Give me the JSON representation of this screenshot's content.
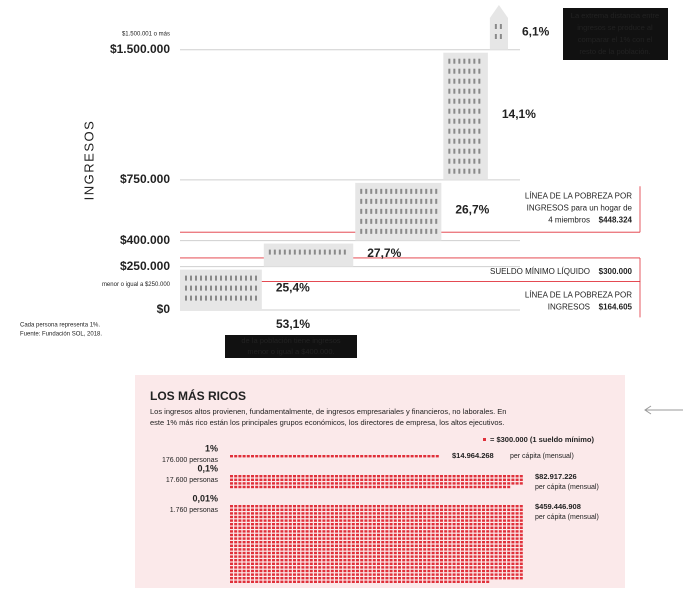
{
  "chart_data": {
    "type": "step",
    "y_label": "INGRESOS",
    "ylim": [
      0,
      1700000
    ],
    "xlim": [
      0,
      100
    ],
    "yticks": [
      {
        "value": 0,
        "label": "$0"
      },
      {
        "value": 250000,
        "label": "$250.000"
      },
      {
        "value": 400000,
        "label": "$400.000"
      },
      {
        "value": 750000,
        "label": "$750.000"
      },
      {
        "value": 1500000,
        "label": "$1.500.000"
      }
    ],
    "tick_notes": [
      "menor o igual a $250.000",
      "$1.500.001 o más"
    ],
    "values": [
      25.4,
      27.7,
      26.7,
      14.1,
      6.1
    ],
    "value_labels": [
      "25,4%",
      "27,7%",
      "26,7%",
      "14,1%",
      "6,1%"
    ],
    "color": "#e6e6e6",
    "reference_lines": [
      {
        "lines": [
          "LÍNEA DE LA POBREZA POR",
          "INGRESOS para un hogar de",
          "4 miembros"
        ],
        "value": 448324,
        "value_label": "$448.324"
      },
      {
        "lines": [
          "SUELDO MÍNIMO LÍQUIDO"
        ],
        "value": 300000,
        "value_label": "$300.000"
      },
      {
        "lines": [
          "LÍNEA DE LA POBREZA POR",
          "INGRESOS"
        ],
        "value": 164605,
        "value_label": "$164.605"
      }
    ],
    "reference_color": "#e0303a",
    "note_lines": [
      "La extrema distancia entre",
      "ingresos se produce al",
      "comparar el 1% con el",
      "resto de la población."
    ],
    "highlight": {
      "text": "53,1%",
      "lines": [
        "de la población tiene ingresos",
        "menor o igual a $400.000."
      ]
    },
    "source_lines": [
      "Cada persona representa 1%.",
      "Fuente: Fundación SOL, 2018."
    ]
  },
  "rich_panel": {
    "title": "LOS MÁS RICOS",
    "text_lines": [
      "Los ingresos altos provienen, fundamentalmente, de ingresos empresariales y financieros, no laborales.  En",
      "este 1% más rico están los principales grupos económicos, los directores de empresa, los altos ejecutivos."
    ],
    "unit": 300000,
    "unit_label": "= $300.000 (1 sueldo mínimo)",
    "rows": [
      {
        "share": "1%",
        "people": "176.000 personas",
        "value": 14964268,
        "value_label": "$14.964.268",
        "per": "per cápita (mensual)"
      },
      {
        "share": "0,1%",
        "people": "17.600 personas",
        "value": 82917226,
        "value_label": "$82.917.226",
        "per": "per cápita (mensual)"
      },
      {
        "share": "0,01%",
        "people": "1.760 personas",
        "value": 459446908,
        "value_label": "$459.446.908",
        "per": "per cápita (mensual)"
      }
    ]
  }
}
